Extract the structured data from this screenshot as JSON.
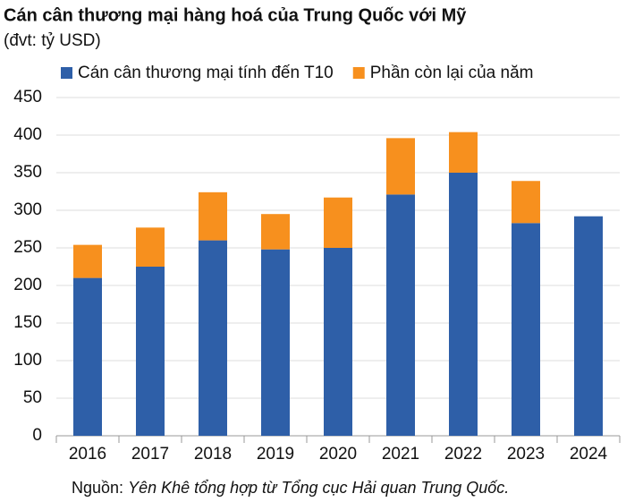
{
  "chart_data": {
    "type": "stacked_bar",
    "title": "Cán cân thương mại hàng hoá của Trung Quốc với Mỹ",
    "subtitle": "(đvt: tỷ USD)",
    "categories": [
      "2016",
      "2017",
      "2018",
      "2019",
      "2020",
      "2021",
      "2022",
      "2023",
      "2024"
    ],
    "series": [
      {
        "name": "Cán cân thương mại tính đến T10",
        "color": "#2e5fa8",
        "values": [
          210,
          225,
          260,
          248,
          250,
          321,
          350,
          283,
          292
        ]
      },
      {
        "name": "Phần còn lại của năm",
        "color": "#f7901e",
        "values": [
          44,
          52,
          64,
          47,
          67,
          75,
          54,
          56,
          null
        ]
      }
    ],
    "ylim": [
      0,
      450
    ],
    "yticks": [
      0,
      50,
      100,
      150,
      200,
      250,
      300,
      350,
      400,
      450
    ],
    "grid": true,
    "source_label": "Nguồn:",
    "source": "Yên Khê tổng hợp từ Tổng cục Hải quan Trung Quốc."
  }
}
